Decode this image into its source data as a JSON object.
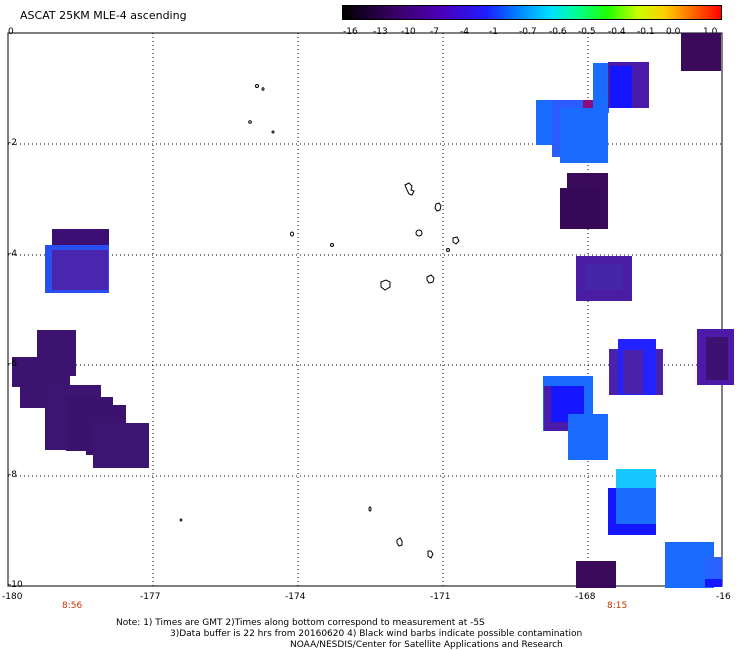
{
  "title": "ASCAT 25KM MLE-4 ascending",
  "colorbar": {
    "labels": [
      "-16",
      "-13",
      "-10",
      "-7",
      "-4",
      "-1",
      "-0.7",
      "-0.6",
      "-0.5",
      "-0.4",
      "-0.1",
      "0.0",
      "1.0"
    ]
  },
  "axes": {
    "y_labels": [
      "0",
      "-2",
      "-4",
      "-6",
      "-8",
      "-10"
    ],
    "x_labels": [
      "-180",
      "-177",
      "-174",
      "-171",
      "-168",
      "-16"
    ]
  },
  "times": {
    "left": "8:56",
    "right": "8:15"
  },
  "notes": {
    "line1": "Note: 1) Times are GMT 2)Times along bottom correspond to measurement at -5S",
    "line2": "3)Data buffer is 22 hrs from 20160620 4) Black wind barbs indicate possible contamination",
    "line3": "NOAA/NESDIS/Center for Satellite Applications and Research"
  }
}
